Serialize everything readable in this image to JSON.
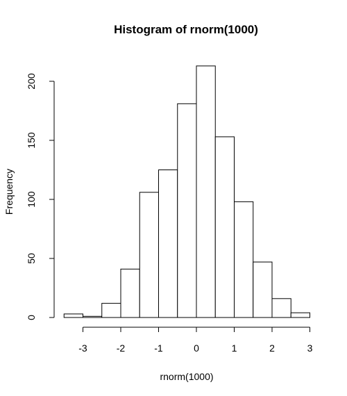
{
  "chart_data": {
    "type": "bar",
    "title": "Histogram of rnorm(1000)",
    "xlabel": "rnorm(1000)",
    "ylabel": "Frequency",
    "bins": [
      {
        "x0": -3.5,
        "x1": -3.0,
        "count": 3
      },
      {
        "x0": -3.0,
        "x1": -2.5,
        "count": 1
      },
      {
        "x0": -2.5,
        "x1": -2.0,
        "count": 12
      },
      {
        "x0": -2.0,
        "x1": -1.5,
        "count": 41
      },
      {
        "x0": -1.5,
        "x1": -1.0,
        "count": 106
      },
      {
        "x0": -1.0,
        "x1": -0.5,
        "count": 125
      },
      {
        "x0": -0.5,
        "x1": 0.0,
        "count": 181
      },
      {
        "x0": 0.0,
        "x1": 0.5,
        "count": 213
      },
      {
        "x0": 0.5,
        "x1": 1.0,
        "count": 153
      },
      {
        "x0": 1.0,
        "x1": 1.5,
        "count": 98
      },
      {
        "x0": 1.5,
        "x1": 2.0,
        "count": 47
      },
      {
        "x0": 2.0,
        "x1": 2.5,
        "count": 16
      },
      {
        "x0": 2.5,
        "x1": 3.0,
        "count": 4
      }
    ],
    "xticks": [
      "-3",
      "-2",
      "-1",
      "0",
      "1",
      "2",
      "3"
    ],
    "yticks": [
      "0",
      "50",
      "100",
      "150",
      "200"
    ],
    "xlim": [
      -3.5,
      3.0
    ],
    "ylim": [
      0,
      213
    ],
    "grid": false,
    "bar_fill": "#ffffff",
    "bar_stroke": "#000000"
  }
}
